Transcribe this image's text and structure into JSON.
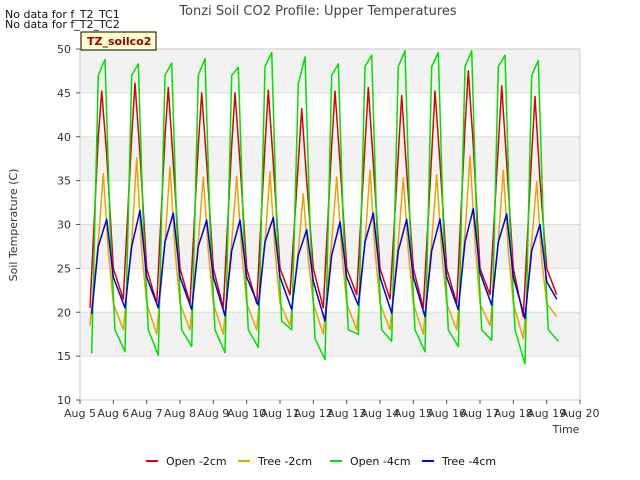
{
  "chart_data": {
    "type": "line",
    "title": "Tonzi Soil CO2 Profile: Upper Temperatures",
    "xlabel": "Time",
    "ylabel": "Soil Temperature (C)",
    "xlim": [
      5,
      20
    ],
    "ylim": [
      10,
      50
    ],
    "x_ticks": [
      "Aug 5",
      "Aug 6",
      "Aug 7",
      "Aug 8",
      "Aug 9",
      "Aug 10",
      "Aug 11",
      "Aug 12",
      "Aug 13",
      "Aug 14",
      "Aug 15",
      "Aug 16",
      "Aug 17",
      "Aug 18",
      "Aug 19",
      "Aug 20"
    ],
    "y_ticks": [
      10,
      15,
      20,
      25,
      30,
      35,
      40,
      45,
      50
    ],
    "grid": "horizontal bands",
    "legend_position": "bottom",
    "no_data_notes": [
      "No data for f_T2_TC1",
      "No data for f_T2_TC2"
    ],
    "site_label": "TZ_soilco2",
    "x_unit": "day of August",
    "series": [
      {
        "name": "Open -2cm",
        "color": "#e00000",
        "x": [
          5.3,
          5.55,
          5.65,
          5.8,
          6.0,
          6.3,
          6.55,
          6.65,
          6.8,
          7.0,
          7.3,
          7.55,
          7.65,
          7.8,
          8.0,
          8.3,
          8.55,
          8.65,
          8.8,
          9.0,
          9.3,
          9.55,
          9.65,
          9.8,
          10.0,
          10.3,
          10.55,
          10.65,
          10.8,
          11.0,
          11.3,
          11.55,
          11.65,
          11.8,
          12.0,
          12.3,
          12.55,
          12.65,
          12.8,
          13.0,
          13.3,
          13.55,
          13.65,
          13.8,
          14.0,
          14.3,
          14.55,
          14.65,
          14.8,
          15.0,
          15.3,
          15.55,
          15.65,
          15.8,
          16.0,
          16.3,
          16.55,
          16.65,
          16.8,
          17.0,
          17.3,
          17.55,
          17.65,
          17.8,
          18.0,
          18.3,
          18.55,
          18.65,
          18.8,
          19.0,
          19.3
        ],
        "y": [
          20.5,
          40.0,
          45.2,
          38.0,
          25.0,
          21.5,
          40.0,
          46.1,
          38.0,
          25.0,
          21.0,
          40.0,
          45.6,
          37.0,
          25.0,
          21.0,
          39.0,
          45.0,
          37.0,
          25.0,
          20.5,
          39.0,
          45.0,
          37.0,
          25.0,
          21.0,
          39.0,
          45.3,
          37.0,
          25.0,
          22.0,
          37.0,
          43.2,
          35.0,
          25.0,
          20.5,
          39.0,
          45.2,
          37.0,
          25.0,
          22.0,
          39.0,
          45.6,
          37.0,
          25.0,
          21.5,
          38.0,
          44.7,
          36.0,
          25.0,
          20.5,
          38.0,
          45.2,
          37.0,
          25.0,
          21.0,
          41.0,
          47.5,
          39.0,
          25.0,
          22.0,
          39.0,
          45.8,
          37.0,
          25.0,
          19.5,
          38.0,
          44.6,
          35.0,
          25.0,
          22.0
        ]
      },
      {
        "name": "Tree -2cm",
        "color": "#f0a000",
        "x": [
          5.3,
          5.55,
          5.7,
          5.85,
          6.0,
          6.3,
          6.55,
          6.7,
          6.85,
          7.0,
          7.3,
          7.55,
          7.7,
          7.85,
          8.0,
          8.3,
          8.55,
          8.7,
          8.85,
          9.0,
          9.3,
          9.55,
          9.7,
          9.85,
          10.0,
          10.3,
          10.55,
          10.7,
          10.85,
          11.0,
          11.3,
          11.55,
          11.7,
          11.85,
          12.0,
          12.3,
          12.55,
          12.7,
          12.85,
          13.0,
          13.3,
          13.55,
          13.7,
          13.85,
          14.0,
          14.3,
          14.55,
          14.7,
          14.85,
          15.0,
          15.3,
          15.55,
          15.7,
          15.85,
          16.0,
          16.3,
          16.55,
          16.7,
          16.85,
          17.0,
          17.3,
          17.55,
          17.7,
          17.85,
          18.0,
          18.3,
          18.55,
          18.7,
          18.85,
          19.0,
          19.3
        ],
        "y": [
          18.5,
          28.0,
          35.8,
          27.0,
          21.0,
          18.0,
          28.0,
          37.6,
          27.0,
          21.0,
          17.5,
          28.0,
          36.6,
          27.0,
          21.0,
          18.0,
          28.0,
          35.4,
          27.0,
          21.0,
          17.5,
          28.0,
          35.5,
          27.0,
          21.0,
          18.0,
          28.0,
          36.0,
          27.0,
          21.0,
          18.5,
          27.0,
          33.5,
          26.0,
          21.0,
          17.5,
          28.0,
          35.4,
          27.0,
          21.0,
          18.0,
          28.0,
          36.2,
          27.0,
          21.0,
          18.0,
          28.0,
          35.3,
          27.0,
          21.0,
          17.5,
          28.0,
          35.7,
          27.0,
          21.0,
          18.0,
          29.0,
          37.8,
          28.0,
          21.0,
          18.5,
          28.0,
          36.2,
          27.0,
          21.0,
          17.0,
          28.0,
          34.9,
          26.0,
          21.0,
          19.5
        ]
      },
      {
        "name": "Open -4cm",
        "color": "#00e000",
        "x": [
          5.35,
          5.55,
          5.75,
          5.9,
          6.05,
          6.35,
          6.55,
          6.75,
          6.9,
          7.05,
          7.35,
          7.55,
          7.75,
          7.9,
          8.05,
          8.35,
          8.55,
          8.75,
          8.9,
          9.05,
          9.35,
          9.55,
          9.75,
          9.9,
          10.05,
          10.35,
          10.55,
          10.75,
          10.9,
          11.05,
          11.35,
          11.55,
          11.75,
          11.9,
          12.05,
          12.35,
          12.55,
          12.75,
          12.9,
          13.05,
          13.35,
          13.55,
          13.75,
          13.9,
          14.05,
          14.35,
          14.55,
          14.75,
          14.9,
          15.05,
          15.35,
          15.55,
          15.75,
          15.9,
          16.05,
          16.35,
          16.55,
          16.75,
          16.9,
          17.05,
          17.35,
          17.55,
          17.75,
          17.9,
          18.05,
          18.35,
          18.55,
          18.75,
          18.9,
          19.05,
          19.35
        ],
        "y": [
          15.3,
          47.0,
          48.8,
          30.0,
          18.0,
          15.5,
          47.0,
          48.3,
          30.0,
          18.0,
          15.1,
          47.0,
          48.4,
          30.0,
          18.0,
          16.1,
          47.0,
          48.9,
          30.0,
          18.0,
          15.4,
          47.0,
          47.9,
          30.0,
          18.0,
          16.0,
          48.0,
          49.6,
          30.0,
          19.0,
          18.0,
          46.0,
          49.1,
          30.0,
          17.0,
          14.6,
          47.0,
          48.3,
          30.0,
          18.0,
          17.5,
          48.0,
          49.3,
          30.0,
          18.0,
          16.7,
          48.0,
          49.8,
          30.0,
          18.0,
          15.5,
          48.0,
          49.6,
          30.0,
          18.0,
          16.1,
          48.0,
          49.8,
          30.0,
          18.0,
          16.8,
          48.0,
          49.3,
          30.0,
          18.0,
          14.1,
          47.0,
          48.7,
          30.0,
          18.0,
          16.7
        ]
      },
      {
        "name": "Tree -4cm",
        "color": "#0000e0",
        "x": [
          5.35,
          5.55,
          5.8,
          6.0,
          6.35,
          6.55,
          6.8,
          7.0,
          7.35,
          7.55,
          7.8,
          8.0,
          8.35,
          8.55,
          8.8,
          9.0,
          9.35,
          9.55,
          9.8,
          10.0,
          10.35,
          10.55,
          10.8,
          11.0,
          11.35,
          11.55,
          11.8,
          12.0,
          12.35,
          12.55,
          12.8,
          13.0,
          13.35,
          13.55,
          13.8,
          14.0,
          14.35,
          14.55,
          14.8,
          15.0,
          15.35,
          15.55,
          15.8,
          16.0,
          16.35,
          16.55,
          16.8,
          17.0,
          17.35,
          17.55,
          17.8,
          18.0,
          18.35,
          18.55,
          18.8,
          19.0,
          19.3
        ],
        "y": [
          19.8,
          27.5,
          30.6,
          24.0,
          20.5,
          27.5,
          31.6,
          24.0,
          20.5,
          28.0,
          31.3,
          24.0,
          20.3,
          27.5,
          30.5,
          24.0,
          19.6,
          27.0,
          30.5,
          24.0,
          20.8,
          28.0,
          30.8,
          24.0,
          20.3,
          26.5,
          29.4,
          23.5,
          19.0,
          26.5,
          30.3,
          24.0,
          20.8,
          28.0,
          31.3,
          24.0,
          19.9,
          27.0,
          30.6,
          24.0,
          19.5,
          27.0,
          30.6,
          24.0,
          20.3,
          28.0,
          31.8,
          24.5,
          20.8,
          28.0,
          31.2,
          24.0,
          19.3,
          27.0,
          30.0,
          23.5,
          21.5
        ]
      }
    ]
  }
}
